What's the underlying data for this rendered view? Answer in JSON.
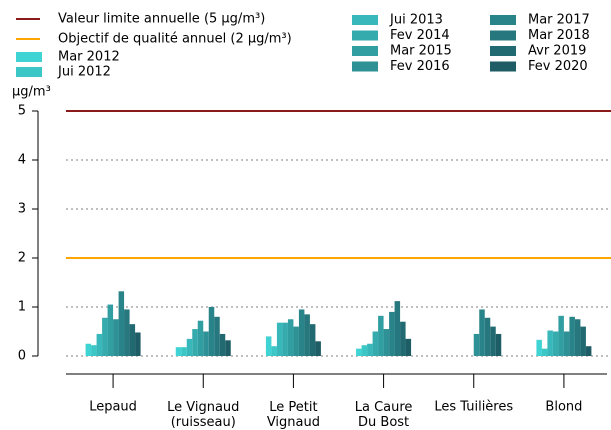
{
  "chart_data": {
    "type": "bar",
    "ylabel": "µg/m³",
    "categories": [
      "Lepaud",
      "Le Vignaud\n(ruisseau)",
      "Le Petit\nVignaud",
      "La Caure\nDu Bost",
      "Les Tuilières",
      "Blond"
    ],
    "series": [
      {
        "name": "Mar 2012",
        "color": "#40d3d3",
        "values": [
          0.25,
          0.18,
          0.4,
          0.15,
          null,
          0.33
        ]
      },
      {
        "name": "Jui 2012",
        "color": "#3cc6c6",
        "values": [
          0.22,
          0.18,
          0.2,
          0.22,
          null,
          0.15
        ]
      },
      {
        "name": "Jui 2013",
        "color": "#38b8ba",
        "values": [
          0.45,
          0.35,
          0.68,
          0.25,
          null,
          0.52
        ]
      },
      {
        "name": "Fev 2014",
        "color": "#35abae",
        "values": [
          0.78,
          0.55,
          0.68,
          0.5,
          null,
          0.5
        ]
      },
      {
        "name": "Mar 2015",
        "color": "#319ea2",
        "values": [
          1.05,
          0.72,
          0.75,
          0.82,
          null,
          0.82
        ]
      },
      {
        "name": "Fev 2016",
        "color": "#2d9196",
        "values": [
          0.75,
          0.5,
          0.6,
          0.55,
          0.45,
          0.5
        ]
      },
      {
        "name": "Mar 2017",
        "color": "#29848a",
        "values": [
          1.32,
          1.0,
          0.95,
          0.9,
          0.95,
          0.8
        ]
      },
      {
        "name": "Mar 2018",
        "color": "#26777e",
        "values": [
          0.95,
          0.8,
          0.85,
          1.12,
          0.78,
          0.75
        ]
      },
      {
        "name": "Avr 2019",
        "color": "#226a72",
        "values": [
          0.65,
          0.45,
          0.65,
          0.7,
          0.6,
          0.6
        ]
      },
      {
        "name": "Fev 2020",
        "color": "#1e5d66",
        "values": [
          0.48,
          0.32,
          0.3,
          0.35,
          0.45,
          0.2
        ]
      }
    ],
    "reference_lines": [
      {
        "name": "Valeur limite annuelle (5 µg/m³)",
        "value": 5,
        "color": "#8b1a1a"
      },
      {
        "name": "Objectif de qualité annuel (2 µg/m³)",
        "value": 2,
        "color": "#ffa500"
      }
    ],
    "ylim": [
      0,
      5
    ],
    "yticks": [
      0,
      1,
      2,
      3,
      4,
      5
    ],
    "grid": true
  }
}
